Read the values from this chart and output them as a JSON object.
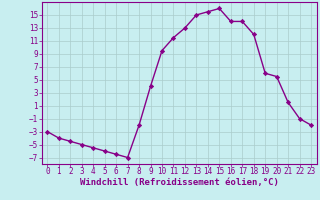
{
  "x": [
    0,
    1,
    2,
    3,
    4,
    5,
    6,
    7,
    8,
    9,
    10,
    11,
    12,
    13,
    14,
    15,
    16,
    17,
    18,
    19,
    20,
    21,
    22,
    23
  ],
  "y": [
    -3,
    -4,
    -4.5,
    -5,
    -5.5,
    -6,
    -6.5,
    -7,
    -2,
    4,
    9.5,
    11.5,
    13,
    15,
    15.5,
    16,
    14,
    14,
    12,
    6,
    5.5,
    1.5,
    -1,
    -2
  ],
  "line_color": "#880088",
  "marker": "D",
  "marker_size": 2.2,
  "xlabel": "Windchill (Refroidissement éolien,°C)",
  "xlabel_fontsize": 6.5,
  "ylim": [
    -8,
    17
  ],
  "xlim": [
    -0.5,
    23.5
  ],
  "yticks": [
    -7,
    -5,
    -3,
    -1,
    1,
    3,
    5,
    7,
    9,
    11,
    13,
    15
  ],
  "xticks": [
    0,
    1,
    2,
    3,
    4,
    5,
    6,
    7,
    8,
    9,
    10,
    11,
    12,
    13,
    14,
    15,
    16,
    17,
    18,
    19,
    20,
    21,
    22,
    23
  ],
  "bg_color": "#c8eef0",
  "grid_color": "#aacccc",
  "tick_color": "#880088",
  "tick_fontsize": 5.5,
  "xlabel_color": "#880088",
  "line_width": 1.0,
  "spine_color": "#880088"
}
